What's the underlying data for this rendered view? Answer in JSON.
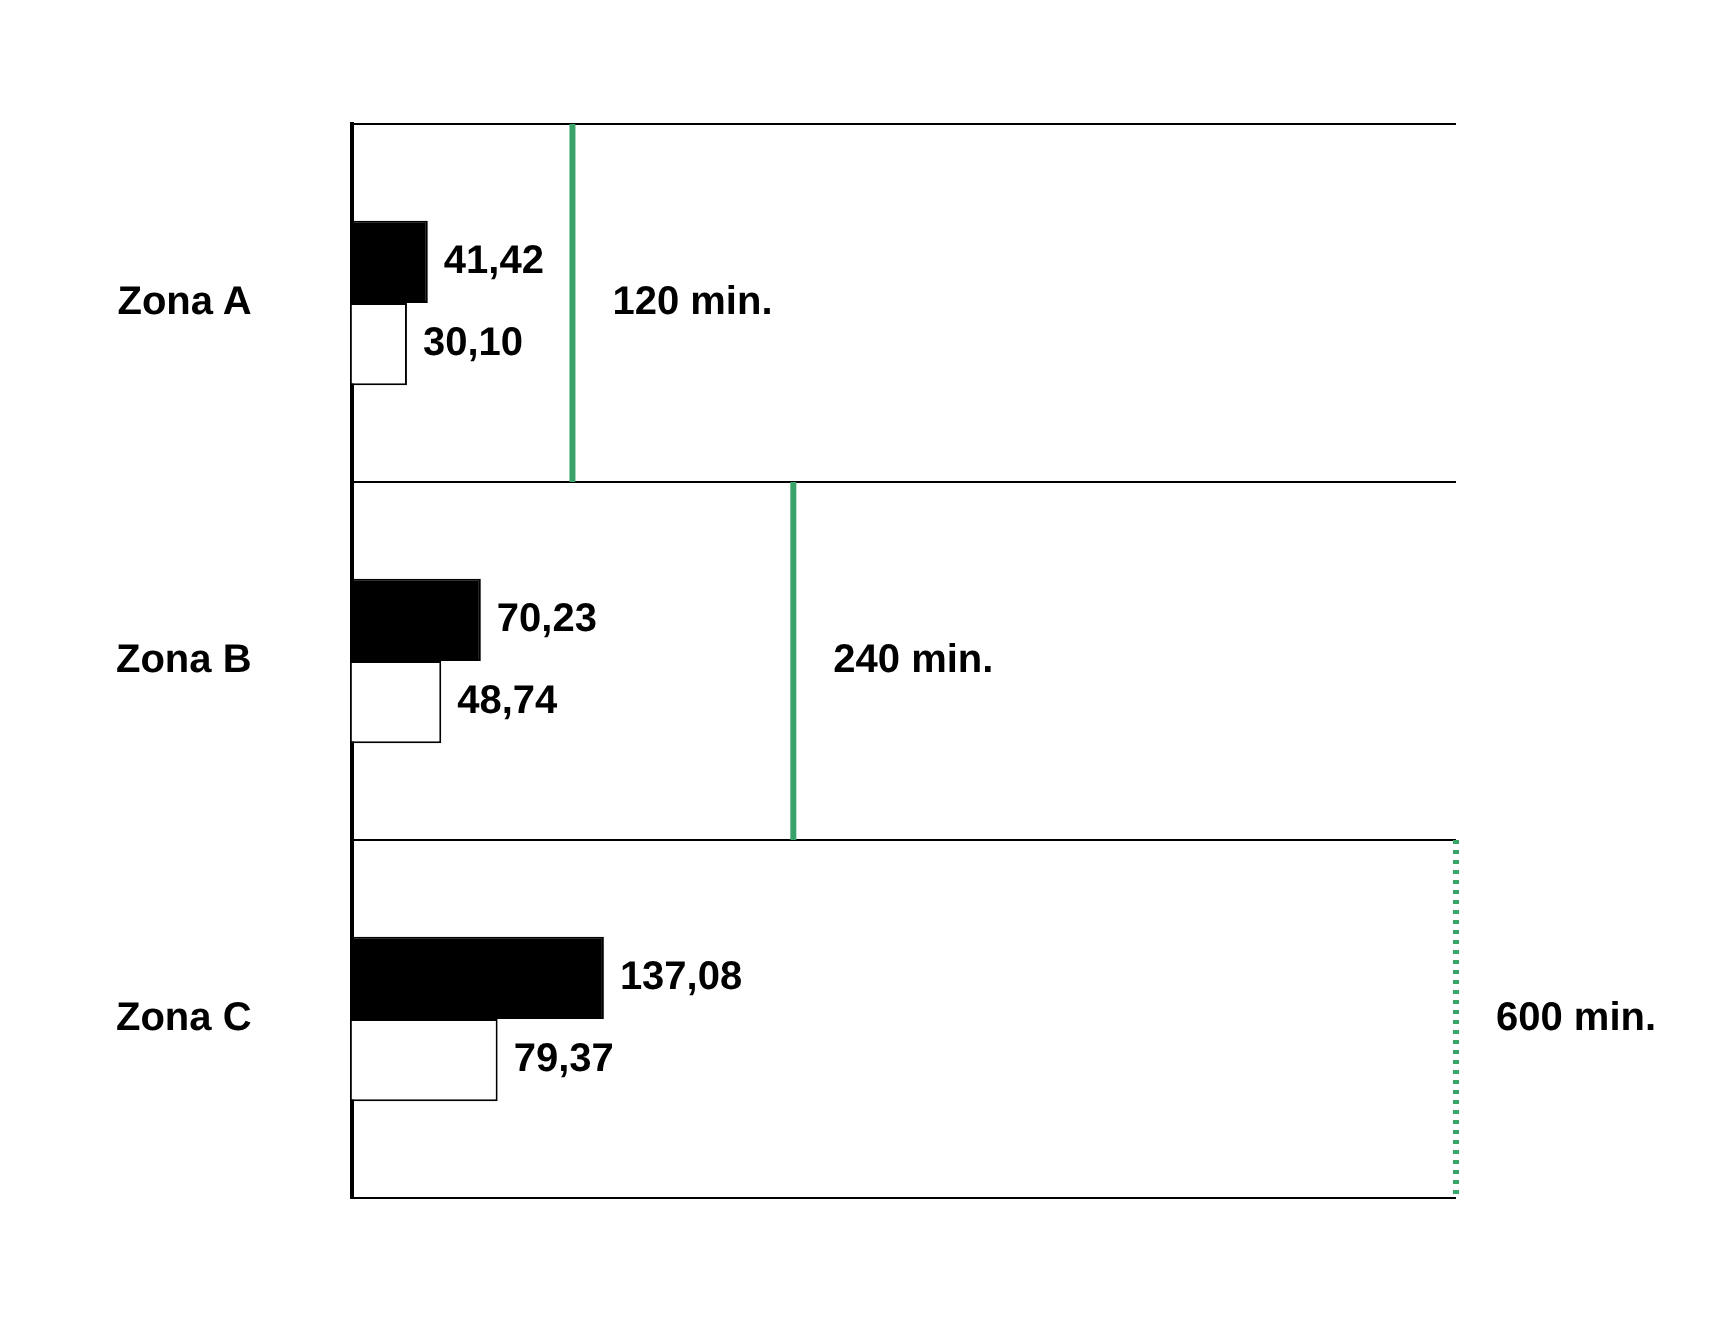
{
  "chart_data": {
    "type": "bar",
    "orientation": "horizontal",
    "categories": [
      "Zona A",
      "Zona B",
      "Zona C"
    ],
    "series": [
      {
        "color": "#000000",
        "values": [
          41.42,
          70.23,
          137.08
        ],
        "value_labels": [
          "41,42",
          "70,23",
          "137,08"
        ]
      },
      {
        "color": "#ffffff",
        "values": [
          30.1,
          48.74,
          79.37
        ],
        "value_labels": [
          "30,10",
          "48,74",
          "79,37"
        ]
      }
    ],
    "xlim": [
      0,
      600
    ],
    "tick_labels": "y",
    "grid": "y",
    "ref_lines": [
      {
        "axis": "x",
        "value": 120,
        "label": "120 min.",
        "color": "#3aa36a",
        "line_style": "solid"
      },
      {
        "axis": "x",
        "value": 240,
        "label": "240 min.",
        "color": "#3aa36a",
        "line_style": "solid"
      },
      {
        "axis": "x",
        "value": 600,
        "label": "600 min.",
        "color": "#3aa36a",
        "line_style": "dotted"
      }
    ]
  }
}
